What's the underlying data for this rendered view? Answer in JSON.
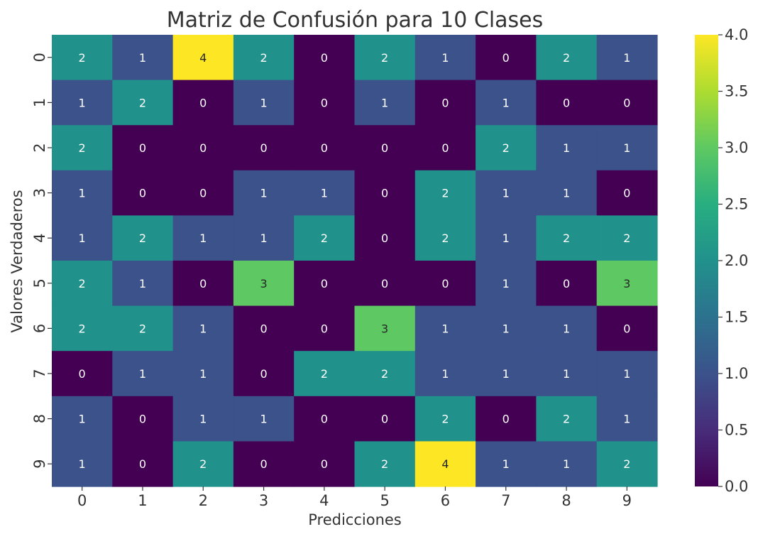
{
  "chart_data": {
    "type": "heatmap",
    "title": "Matriz de Confusión para 10 Clases",
    "xlabel": "Predicciones",
    "ylabel": "Valores Verdaderos",
    "x_categories": [
      "0",
      "1",
      "2",
      "3",
      "4",
      "5",
      "6",
      "7",
      "8",
      "9"
    ],
    "y_categories": [
      "0",
      "1",
      "2",
      "3",
      "4",
      "5",
      "6",
      "7",
      "8",
      "9"
    ],
    "matrix": [
      [
        2,
        1,
        4,
        2,
        0,
        2,
        1,
        0,
        2,
        1
      ],
      [
        1,
        2,
        0,
        1,
        0,
        1,
        0,
        1,
        0,
        0
      ],
      [
        2,
        0,
        0,
        0,
        0,
        0,
        0,
        2,
        1,
        1
      ],
      [
        1,
        0,
        0,
        1,
        1,
        0,
        2,
        1,
        1,
        0
      ],
      [
        1,
        2,
        1,
        1,
        2,
        0,
        2,
        1,
        2,
        2
      ],
      [
        2,
        1,
        0,
        3,
        0,
        0,
        0,
        1,
        0,
        3
      ],
      [
        2,
        2,
        1,
        0,
        0,
        3,
        1,
        1,
        1,
        0
      ],
      [
        0,
        1,
        1,
        0,
        2,
        2,
        1,
        1,
        1,
        1
      ],
      [
        1,
        0,
        1,
        1,
        0,
        0,
        2,
        0,
        2,
        1
      ],
      [
        1,
        0,
        2,
        0,
        0,
        2,
        4,
        1,
        1,
        2
      ]
    ],
    "colormap": "viridis",
    "color_range": [
      0,
      4
    ],
    "colorbar_ticks": [
      "0.0",
      "0.5",
      "1.0",
      "1.5",
      "2.0",
      "2.5",
      "3.0",
      "3.5",
      "4.0"
    ],
    "value_colors": [
      "#440154",
      "#3b528b",
      "#21918c",
      "#5ec962",
      "#fde725"
    ]
  }
}
